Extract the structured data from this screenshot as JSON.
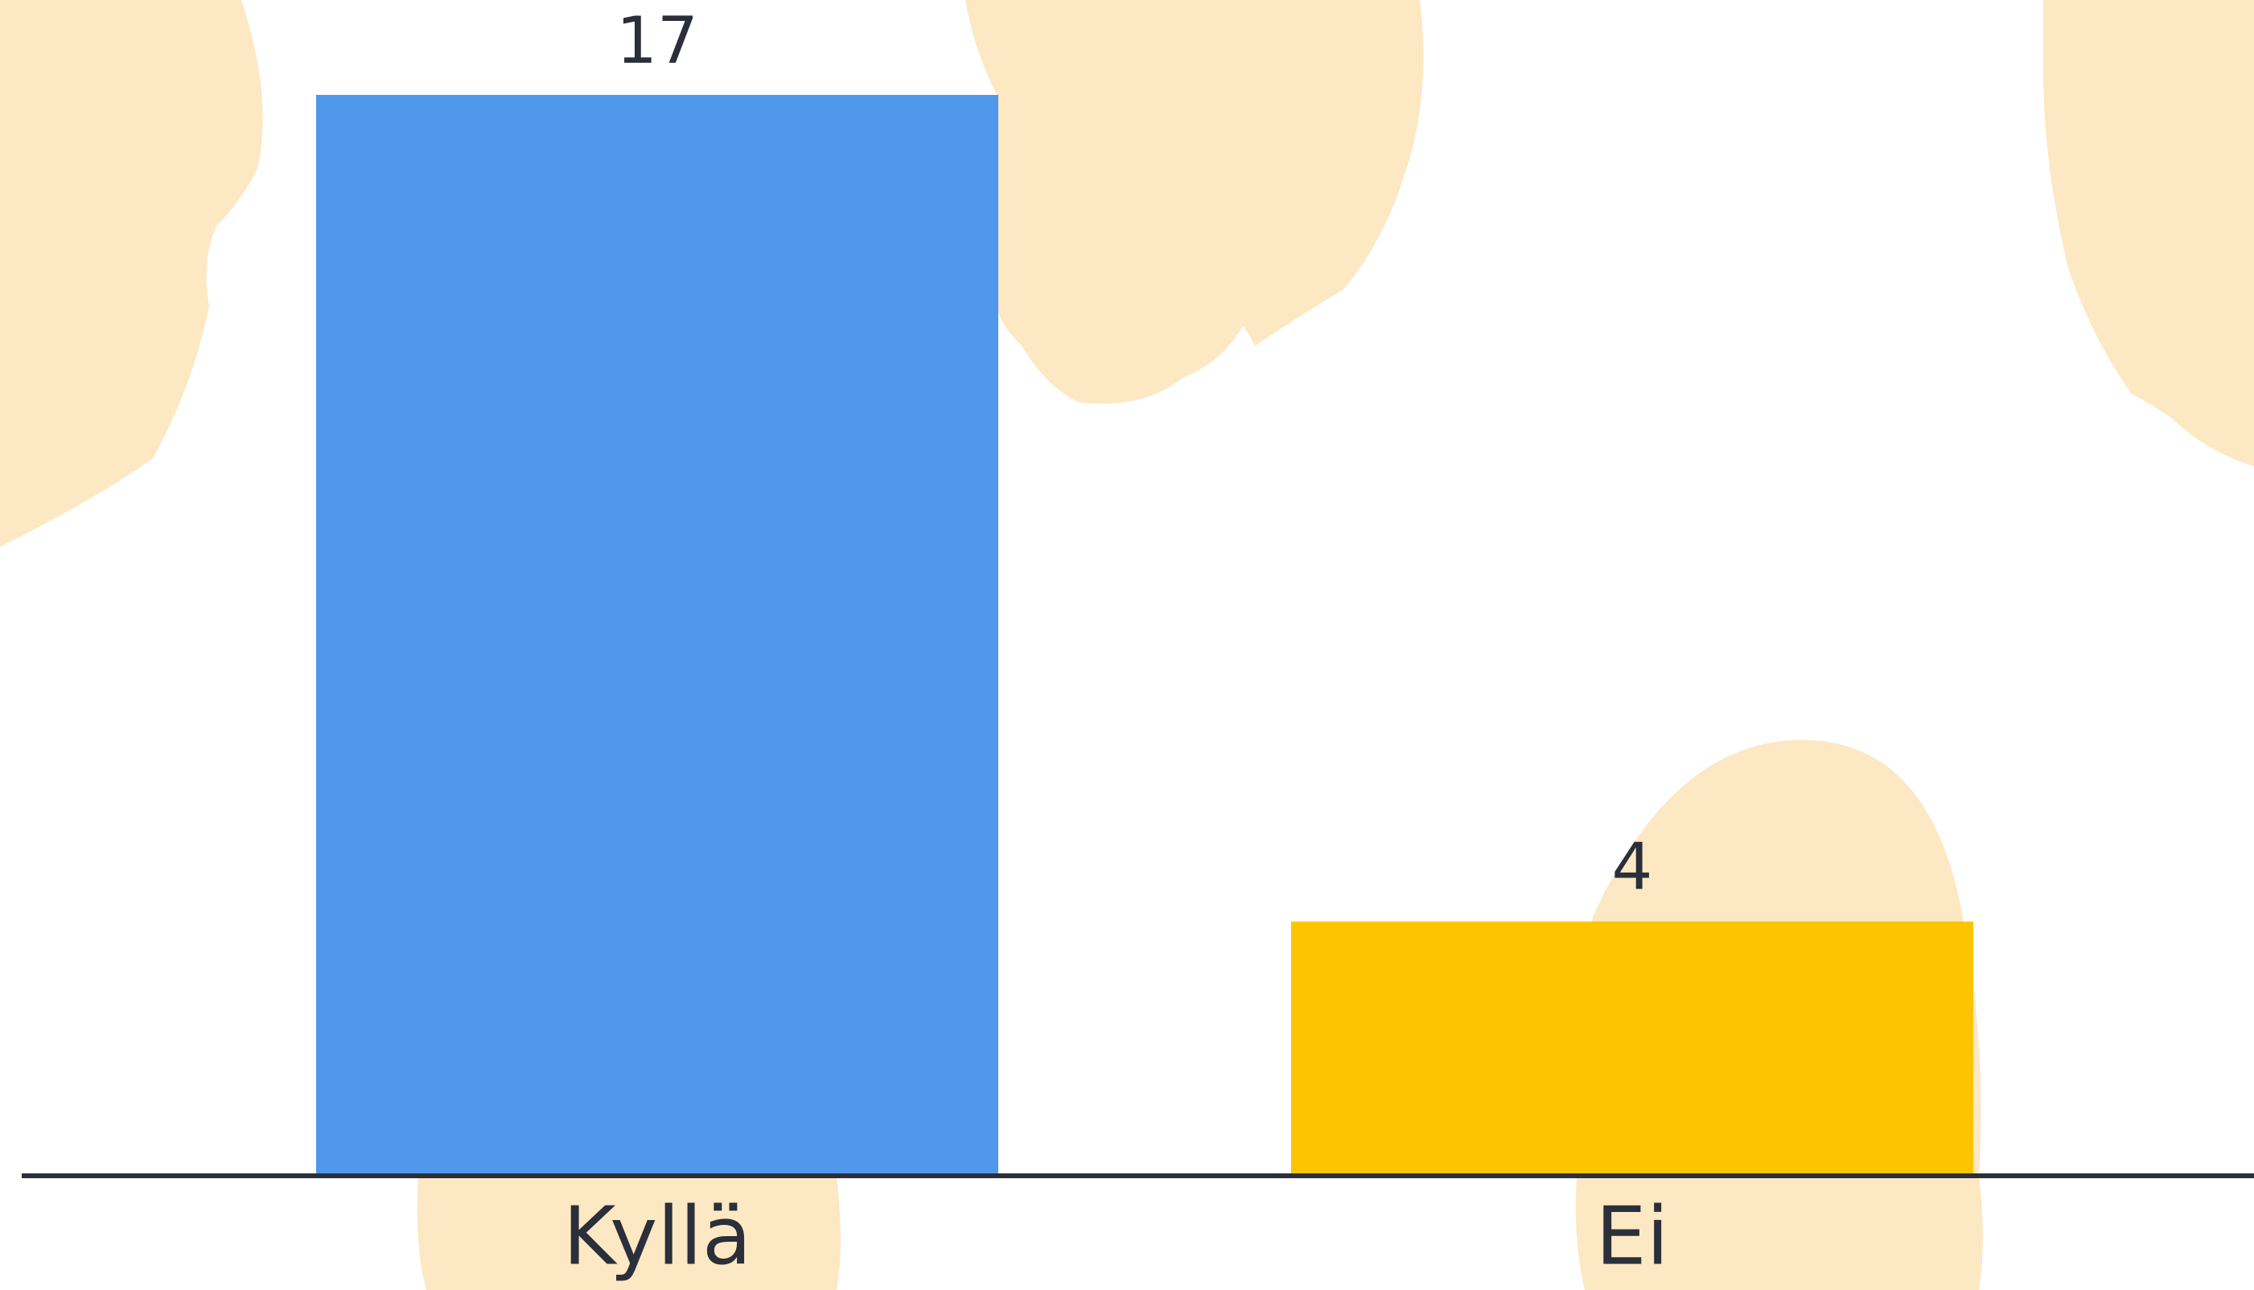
{
  "chart_data": {
    "type": "bar",
    "categories": [
      "Kyllä",
      "Ei"
    ],
    "values": [
      17,
      4
    ],
    "colors": [
      "#4f98ec",
      "#fdc400"
    ]
  }
}
